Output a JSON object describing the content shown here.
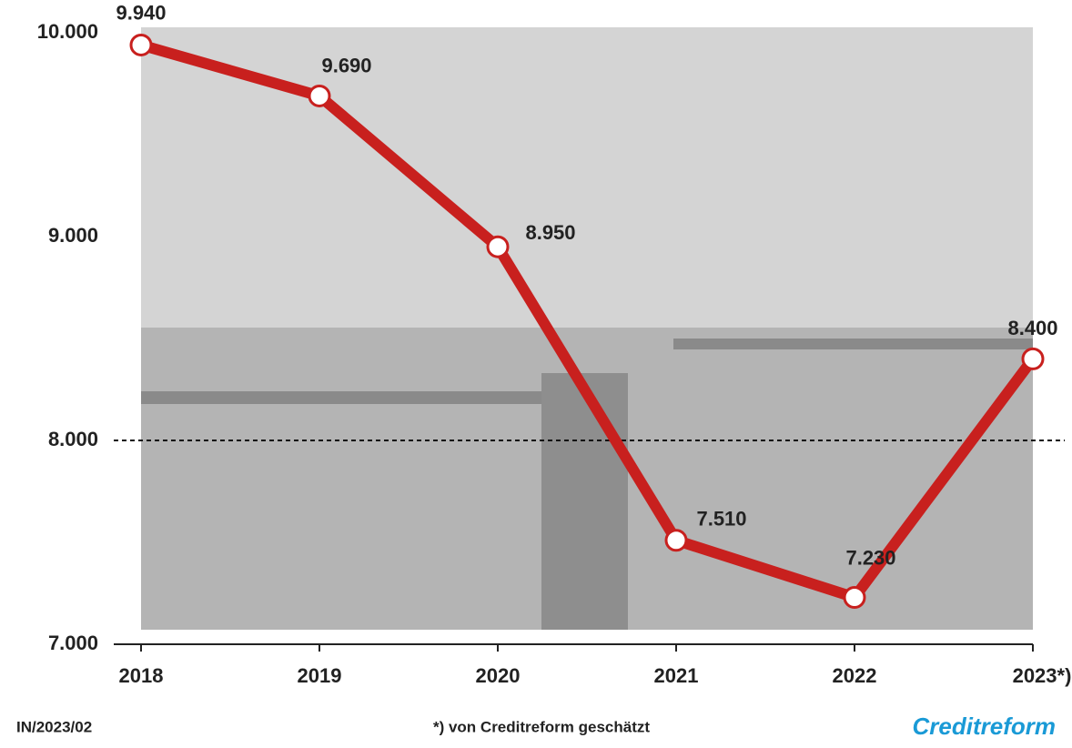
{
  "chart_data": {
    "type": "line",
    "categories": [
      "2018",
      "2019",
      "2020",
      "2021",
      "2022",
      "2023*)"
    ],
    "series": [
      {
        "color": "#c8201e",
        "values": [
          9940,
          9690,
          8950,
          7510,
          7230,
          8400
        ],
        "value_labels": [
          "9.940",
          "9.690",
          "8.950",
          "7.510",
          "7.230",
          "8.400"
        ]
      }
    ],
    "ylim": [
      7000,
      10000
    ],
    "yticks": [
      {
        "value": 10000,
        "label": "10.000"
      },
      {
        "value": 9000,
        "label": "9.000"
      },
      {
        "value": 8000,
        "label": "8.000"
      },
      {
        "value": 7000,
        "label": "7.000"
      }
    ],
    "reference_line": 8000,
    "footer": {
      "code": "IN/2023/02",
      "note": "*) von Creditreform geschätzt",
      "brand": "Creditreform"
    }
  }
}
